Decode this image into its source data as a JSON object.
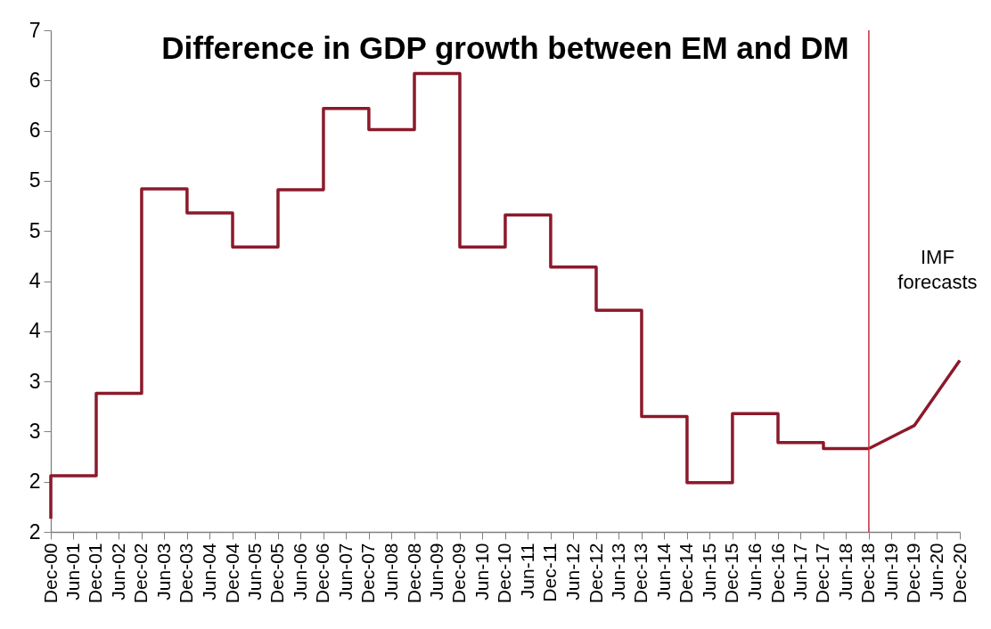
{
  "chart_data": {
    "type": "step",
    "title": "Difference in GDP growth between EM and DM",
    "series": [
      {
        "color": "#8b1a2b",
        "x": [
          "2000-12",
          "2000-12",
          "2001-12",
          "2002-12",
          "2003-12",
          "2004-12",
          "2005-12",
          "2006-12",
          "2007-12",
          "2008-12",
          "2009-12",
          "2010-12",
          "2011-12",
          "2012-12",
          "2013-12",
          "2014-12",
          "2015-12",
          "2016-12",
          "2017-12",
          "2018-12"
        ],
        "values": [
          1.63,
          2.06,
          2.88,
          4.92,
          4.68,
          4.34,
          4.91,
          5.72,
          5.51,
          6.07,
          4.34,
          4.66,
          4.14,
          3.71,
          2.65,
          1.99,
          2.68,
          2.39,
          2.33,
          2.33
        ]
      },
      {
        "type": "line",
        "color": "#8b1a2b",
        "x": [
          "2018-12",
          "2019-12",
          "2020-12"
        ],
        "values": [
          2.33,
          2.56,
          3.21
        ]
      }
    ],
    "xlim": [
      "2000-12",
      "2020-12"
    ],
    "xticks": [
      {
        "value": "2000-12",
        "label": "Dec-00"
      },
      {
        "value": "2001-06",
        "label": "Jun-01"
      },
      {
        "value": "2001-12",
        "label": "Dec-01"
      },
      {
        "value": "2002-06",
        "label": "Jun-02"
      },
      {
        "value": "2002-12",
        "label": "Dec-02"
      },
      {
        "value": "2003-06",
        "label": "Jun-03"
      },
      {
        "value": "2003-12",
        "label": "Dec-03"
      },
      {
        "value": "2004-06",
        "label": "Jun-04"
      },
      {
        "value": "2004-12",
        "label": "Dec-04"
      },
      {
        "value": "2005-06",
        "label": "Jun-05"
      },
      {
        "value": "2005-12",
        "label": "Dec-05"
      },
      {
        "value": "2006-06",
        "label": "Jun-06"
      },
      {
        "value": "2006-12",
        "label": "Dec-06"
      },
      {
        "value": "2007-06",
        "label": "Jun-07"
      },
      {
        "value": "2007-12",
        "label": "Dec-07"
      },
      {
        "value": "2008-06",
        "label": "Jun-08"
      },
      {
        "value": "2008-12",
        "label": "Dec-08"
      },
      {
        "value": "2009-06",
        "label": "Jun-09"
      },
      {
        "value": "2009-12",
        "label": "Dec-09"
      },
      {
        "value": "2010-06",
        "label": "Jun-10"
      },
      {
        "value": "2010-12",
        "label": "Dec-10"
      },
      {
        "value": "2011-06",
        "label": "Jun-11"
      },
      {
        "value": "2011-12",
        "label": "Dec-11"
      },
      {
        "value": "2012-06",
        "label": "Jun-12"
      },
      {
        "value": "2012-12",
        "label": "Dec-12"
      },
      {
        "value": "2013-06",
        "label": "Jun-13"
      },
      {
        "value": "2013-12",
        "label": "Dec-13"
      },
      {
        "value": "2014-06",
        "label": "Jun-14"
      },
      {
        "value": "2014-12",
        "label": "Dec-14"
      },
      {
        "value": "2015-06",
        "label": "Jun-15"
      },
      {
        "value": "2015-12",
        "label": "Dec-15"
      },
      {
        "value": "2016-06",
        "label": "Jun-16"
      },
      {
        "value": "2016-12",
        "label": "Dec-16"
      },
      {
        "value": "2017-06",
        "label": "Jun-17"
      },
      {
        "value": "2017-12",
        "label": "Dec-17"
      },
      {
        "value": "2018-06",
        "label": "Jun-18"
      },
      {
        "value": "2018-12",
        "label": "Dec-18"
      },
      {
        "value": "2019-06",
        "label": "Jun-19"
      },
      {
        "value": "2019-12",
        "label": "Dec-19"
      },
      {
        "value": "2020-06",
        "label": "Jun-20"
      },
      {
        "value": "2020-12",
        "label": "Dec-20"
      }
    ],
    "ylim": [
      1.5,
      6.5
    ],
    "yticks": [
      {
        "value": 1.5,
        "label": "2"
      },
      {
        "value": 2,
        "label": "2"
      },
      {
        "value": 2.5,
        "label": "3"
      },
      {
        "value": 3,
        "label": "3"
      },
      {
        "value": 3.5,
        "label": "4"
      },
      {
        "value": 4,
        "label": "4"
      },
      {
        "value": 4.5,
        "label": "5"
      },
      {
        "value": 5,
        "label": "5"
      },
      {
        "value": 5.5,
        "label": "6"
      },
      {
        "value": 6,
        "label": "6"
      },
      {
        "value": 6.5,
        "label": "7"
      }
    ],
    "ref_lines": [
      {
        "axis": "x",
        "value": "2018-12",
        "label": "IMF forecasts",
        "color": "#c8283c"
      }
    ],
    "grid": false,
    "marker": "none",
    "line_style": "solid"
  }
}
